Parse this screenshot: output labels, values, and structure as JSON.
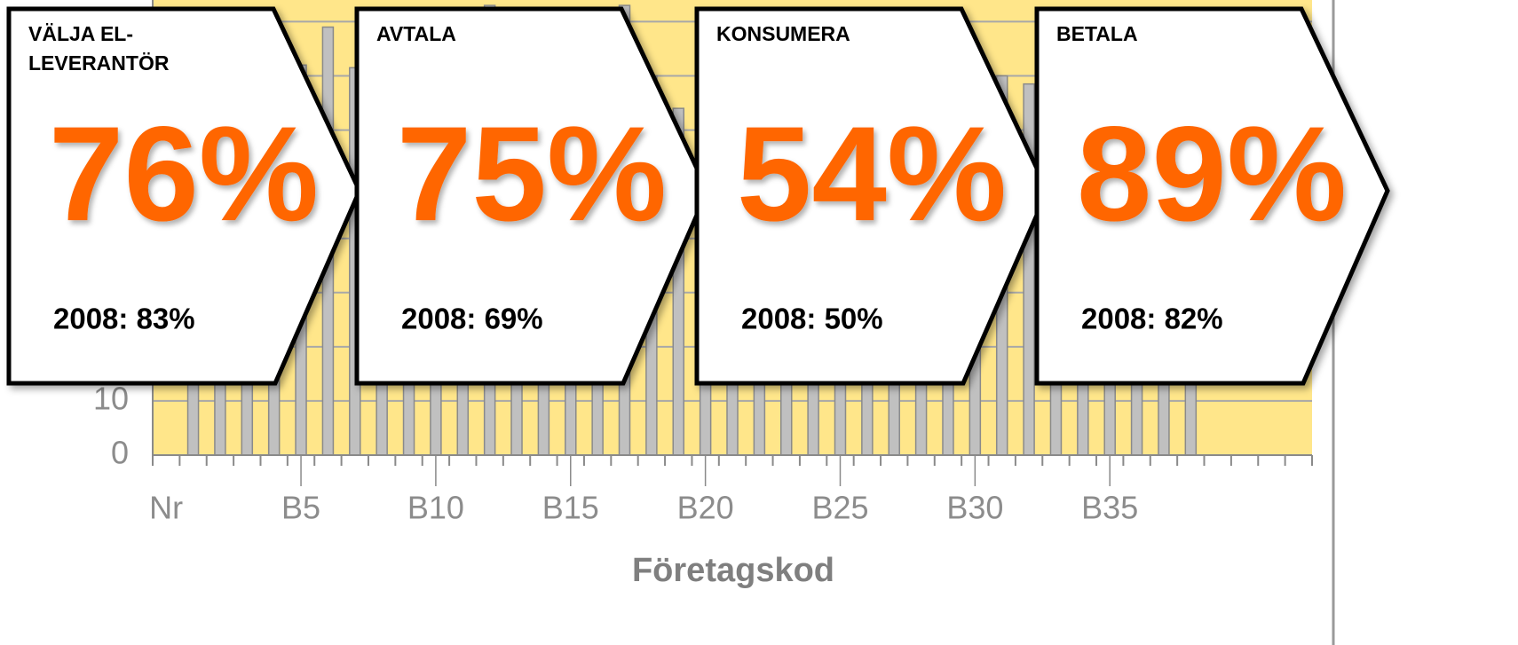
{
  "chart_data": {
    "type": "bar",
    "xlabel": "Företagskod",
    "categories": [
      "Nr",
      null,
      null,
      null,
      null,
      "B5",
      null,
      null,
      null,
      null,
      "B10",
      null,
      null,
      null,
      null,
      "B15",
      null,
      null,
      null,
      null,
      "B20",
      null,
      null,
      null,
      null,
      "B25",
      null,
      null,
      null,
      null,
      "B30",
      null,
      null,
      null,
      null,
      "B35",
      null,
      null,
      null,
      null,
      null,
      null,
      null
    ],
    "values": [
      null,
      62,
      58,
      66,
      60,
      72,
      79,
      71.5,
      68,
      74,
      70,
      76,
      83,
      69,
      73,
      77,
      75,
      83,
      70,
      64,
      66,
      72,
      68,
      63,
      70,
      61,
      67,
      72,
      65,
      69,
      74,
      70,
      68.5,
      62,
      66,
      60,
      64,
      58,
      56,
      null,
      null,
      null,
      null
    ],
    "color": "#c0c0c0",
    "ylim": [
      0,
      84
    ],
    "yticks": [
      0,
      10,
      20,
      30,
      40,
      50,
      60,
      70,
      80
    ],
    "grid": true
  },
  "panels": [
    {
      "title": [
        "VÄLJA EL-",
        "LEVERANTÖR"
      ],
      "value": "76%",
      "previous": "2008: 83%"
    },
    {
      "title": [
        "AVTALA"
      ],
      "value": "75%",
      "previous": "2008: 69%"
    },
    {
      "title": [
        "KONSUMERA"
      ],
      "value": "54%",
      "previous": "2008: 50%"
    },
    {
      "title": [
        "BETALA"
      ],
      "value": "89%",
      "previous": "2008: 82%"
    }
  ]
}
